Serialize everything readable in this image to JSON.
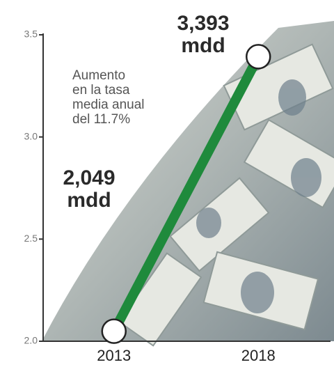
{
  "chart_data": {
    "type": "line",
    "categories": [
      "2013",
      "2018"
    ],
    "series": [
      {
        "color": "#1f8a3c",
        "values": [
          2.049,
          3.393
        ],
        "value_labels": [
          "2,049\nmdd",
          "3,393\nmdd"
        ]
      }
    ],
    "ylim": [
      2,
      3.5
    ],
    "yticks": [
      {
        "value": 2,
        "label": "2.0"
      },
      2.5,
      {
        "value": 3,
        "label": "3.0"
      },
      3.5
    ],
    "annotation": "Aumento\nen la tasa\nmedia anual\ndel 11.7%"
  }
}
